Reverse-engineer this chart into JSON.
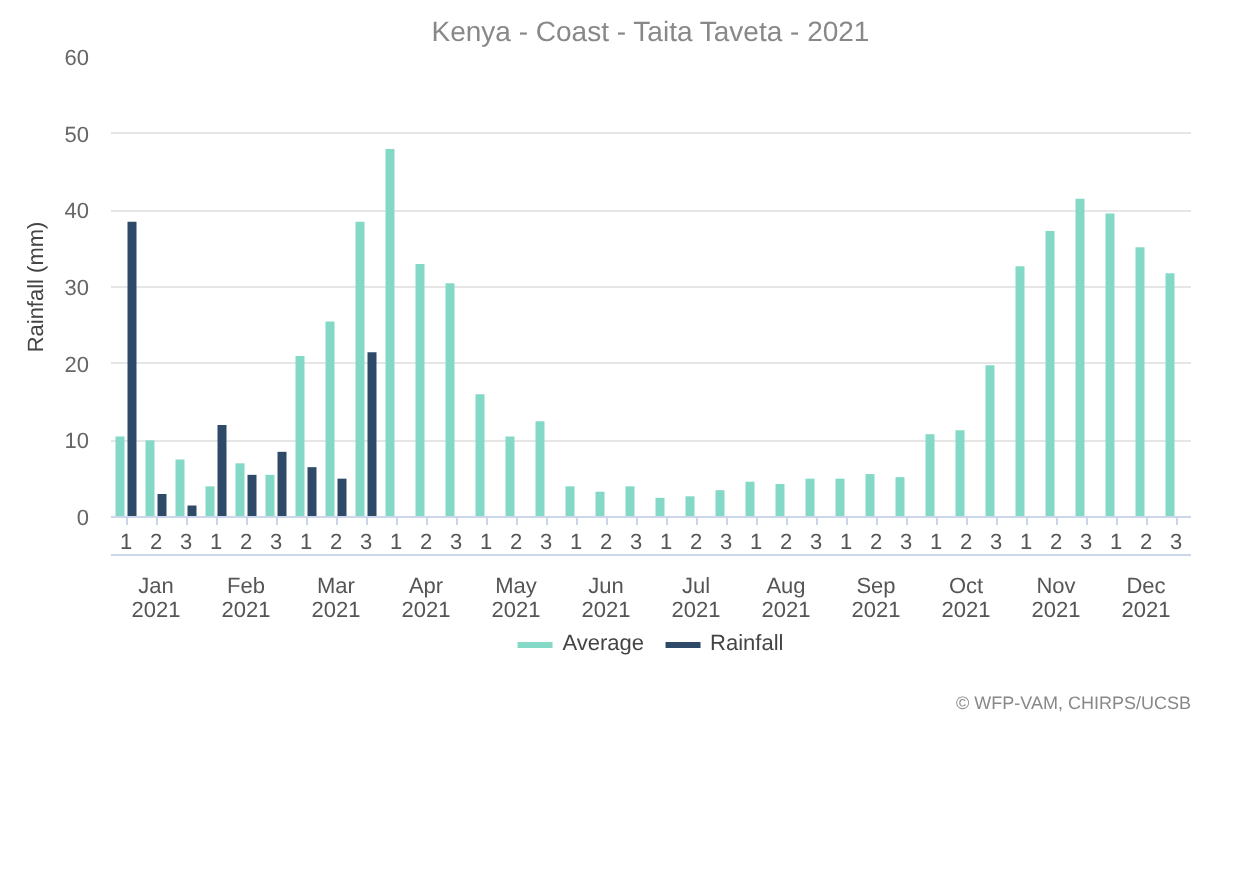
{
  "chart_data": {
    "type": "bar",
    "title": "Kenya - Coast - Taita Taveta - 2021",
    "ylabel": "Rainfall (mm)",
    "categories": [
      "1",
      "2",
      "3",
      "1",
      "2",
      "3",
      "1",
      "2",
      "3",
      "1",
      "2",
      "3",
      "1",
      "2",
      "3",
      "1",
      "2",
      "3",
      "1",
      "2",
      "3",
      "1",
      "2",
      "3",
      "1",
      "2",
      "3",
      "1",
      "2",
      "3",
      "1",
      "2",
      "3",
      "1",
      "2",
      "3"
    ],
    "series": [
      {
        "name": "Average",
        "color": "#84d9c6",
        "values": [
          10.5,
          10,
          7.5,
          4,
          7,
          5.5,
          21,
          25.5,
          38.5,
          48,
          33,
          30.5,
          16,
          10.5,
          12.5,
          4,
          3.3,
          4,
          2.5,
          2.7,
          3.5,
          4.6,
          4.3,
          5,
          5,
          5.6,
          5.2,
          10.8,
          11.3,
          19.8,
          32.7,
          37.3,
          41.5,
          39.6,
          35.2,
          31.8
        ]
      },
      {
        "name": "Rainfall",
        "color": "#2e4a68",
        "values": [
          38.5,
          3,
          1.5,
          12,
          5.5,
          8.5,
          6.5,
          5,
          21.5,
          null,
          null,
          null,
          null,
          null,
          null,
          null,
          null,
          null,
          null,
          null,
          null,
          null,
          null,
          null,
          null,
          null,
          null,
          null,
          null,
          null,
          null,
          null,
          null,
          null,
          null,
          null
        ]
      }
    ],
    "ylim": [
      0,
      60
    ],
    "yticks": [
      0,
      10,
      20,
      30,
      40,
      50,
      60
    ],
    "grid": "y",
    "legend": "bottom",
    "annotations": [
      "Jan\n2021",
      "Feb\n2021",
      "Mar\n2021",
      "Apr\n2021",
      "May\n2021",
      "Jun\n2021",
      "Jul\n2021",
      "Aug\n2021",
      "Sep\n2021",
      "Oct\n2021",
      "Nov\n2021",
      "Dec\n2021",
      "© WFP-VAM, CHIRPS/UCSB"
    ]
  }
}
